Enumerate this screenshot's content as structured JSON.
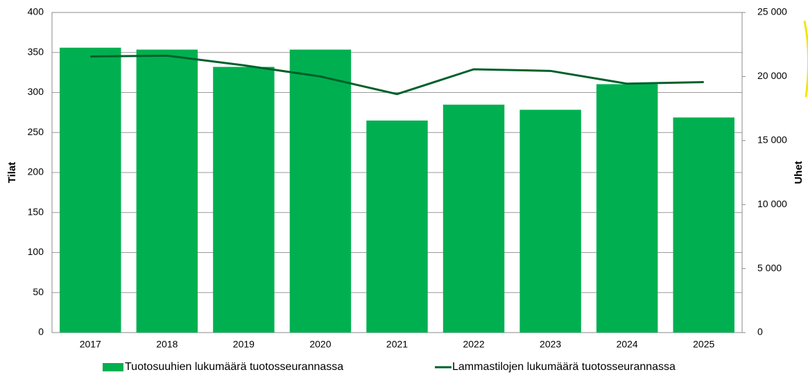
{
  "chart_data": {
    "type": "bar-line",
    "categories": [
      "2017",
      "2018",
      "2019",
      "2020",
      "2021",
      "2022",
      "2023",
      "2024",
      "2025"
    ],
    "series": [
      {
        "name": "Tuotosuuhien lukumäärä tuotosseurannassa",
        "type": "bar",
        "axis": "y2",
        "color": "#00b050",
        "values": [
          22250,
          22100,
          20750,
          22100,
          16560,
          17800,
          17400,
          19400,
          16800
        ]
      },
      {
        "name": "Lammastilojen lukumäärä tuotosseurannassa",
        "type": "line",
        "axis": "y",
        "color": "#00602b",
        "values": [
          345,
          346,
          334,
          320,
          298,
          329,
          327,
          311,
          313
        ]
      }
    ],
    "ylabel": "Tilat",
    "y2label": "Uhet",
    "ylim": [
      0,
      400
    ],
    "yticks": [
      0,
      50,
      100,
      150,
      200,
      250,
      300,
      350,
      400
    ],
    "y2lim": [
      0,
      25000
    ],
    "y2ticks": [
      0,
      {
        "value": 5000,
        "label": "5 000"
      },
      {
        "value": 10000,
        "label": "10 000"
      },
      {
        "value": 15000,
        "label": "15 000"
      },
      {
        "value": 20000,
        "label": "20 000"
      },
      {
        "value": 25000,
        "label": "25 000"
      }
    ],
    "grid": true,
    "legend": "bottom"
  }
}
